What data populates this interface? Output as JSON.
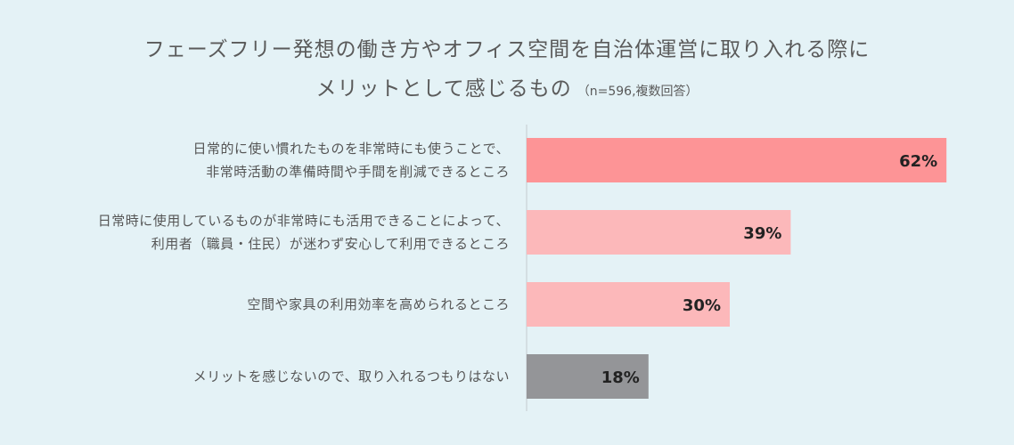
{
  "chart_data": {
    "type": "bar",
    "orientation": "horizontal",
    "title": "フェーズフリー発想の働き方やオフィス空間を自治体運営に取り入れる際に",
    "subtitle": "メリットとして感じるもの",
    "note": "（n=596,複数回答）",
    "categories": [
      [
        "日常的に使い慣れたものを非常時にも使うことで、",
        "非常時活動の準備時間や手間を削減できるところ"
      ],
      [
        "日常時に使用しているものが非常時にも活用できることによって、",
        "利用者（職員・住民）が迷わず安心して利用できるところ"
      ],
      [
        "空間や家具の利用効率を高められるところ"
      ],
      [
        "メリットを感じないので、取り入れるつもりはない"
      ]
    ],
    "values": [
      62,
      39,
      30,
      18
    ],
    "value_labels": [
      "62%",
      "39%",
      "30%",
      "18%"
    ],
    "unit": "%",
    "xlim": [
      0,
      100
    ],
    "grid": false,
    "colors": [
      "#fd9496",
      "#fcb8ba",
      "#fcb8ba",
      "#949598"
    ]
  }
}
